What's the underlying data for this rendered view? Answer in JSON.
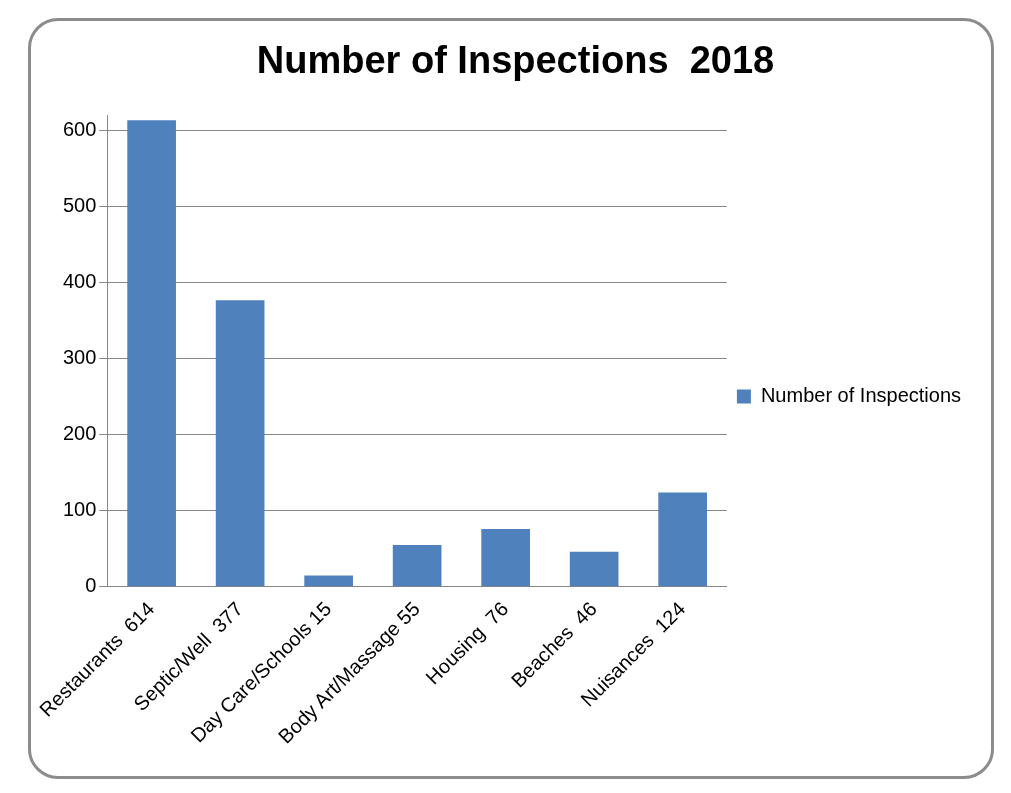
{
  "chart_data": {
    "type": "bar",
    "title": "Number of Inspections  2018",
    "categories": [
      "Restaurants  614",
      "Septic/Well  377",
      "Day Care/Schools 15",
      "Body Art/Massage 55",
      "Housing  76",
      "Beaches  46",
      "Nuisances  124"
    ],
    "series": [
      {
        "name": "Number of Inspections",
        "color": "#4f81bd",
        "values": [
          614,
          377,
          15,
          55,
          76,
          46,
          124
        ]
      }
    ],
    "ylim": [
      0,
      620
    ],
    "yticks": [
      0,
      100,
      200,
      300,
      400,
      500,
      600
    ],
    "grid": "y",
    "legend": "right"
  }
}
